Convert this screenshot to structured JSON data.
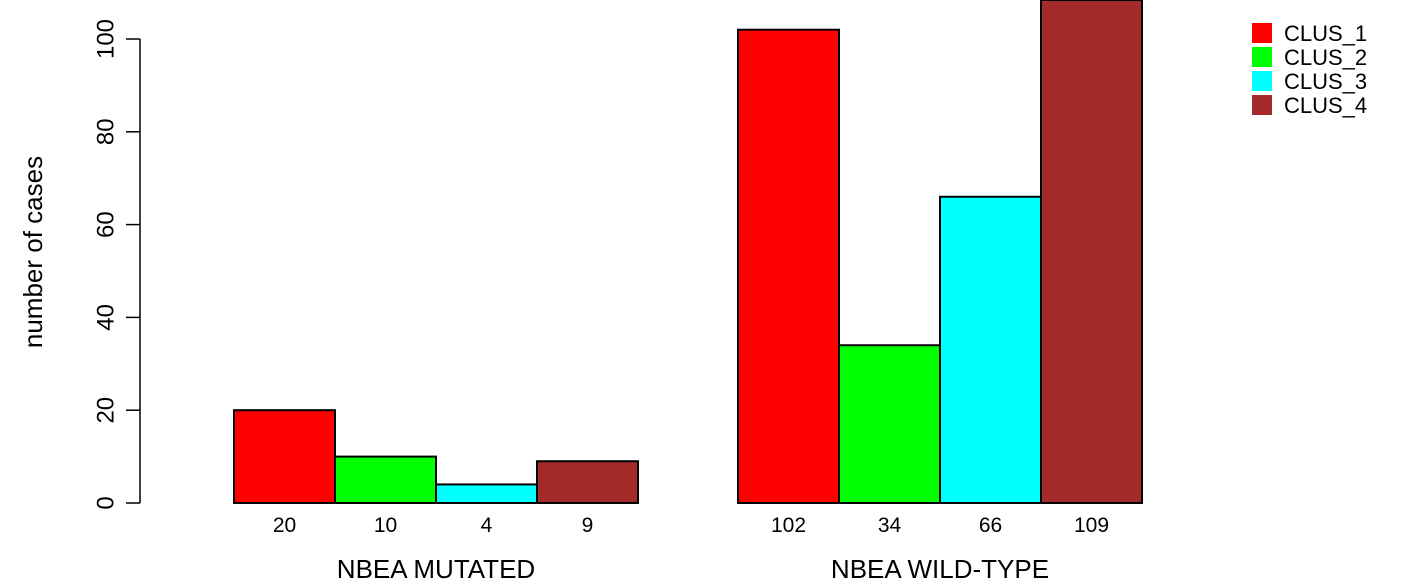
{
  "chart_data": {
    "type": "bar",
    "ylabel": "number of cases",
    "ylim": [
      0,
      110
    ],
    "yticks": [
      0,
      20,
      40,
      60,
      80,
      100
    ],
    "groups": [
      {
        "label": "NBEA MUTATED",
        "values": [
          20,
          10,
          4,
          9
        ],
        "value_labels": [
          "20",
          "10",
          "4",
          "9"
        ]
      },
      {
        "label": "NBEA WILD-TYPE",
        "values": [
          102,
          34,
          66,
          109
        ],
        "value_labels": [
          "102",
          "34",
          "66",
          "109"
        ]
      }
    ],
    "series": [
      {
        "name": "CLUS_1",
        "color": "#ff0000"
      },
      {
        "name": "CLUS_2",
        "color": "#00ff00"
      },
      {
        "name": "CLUS_3",
        "color": "#00ffff"
      },
      {
        "name": "CLUS_4",
        "color": "#a52a2a"
      }
    ],
    "legend_position": "top-right",
    "grid": false
  }
}
